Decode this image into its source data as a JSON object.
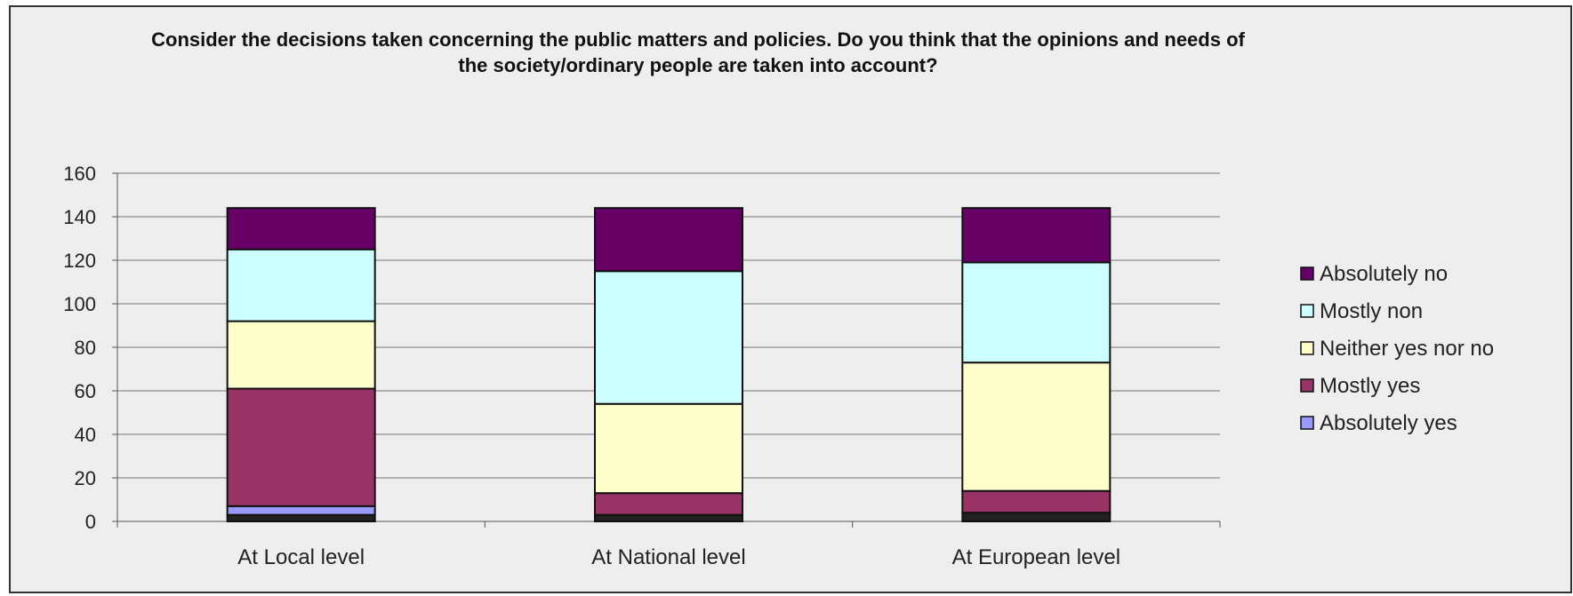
{
  "chart_data": {
    "type": "bar",
    "stacked": true,
    "title_lines": [
      "Consider the decisions taken concerning the public matters and policies. Do you think that the opinions and needs of",
      "the society/ordinary people are taken into account?"
    ],
    "categories": [
      "At Local level",
      "At National level",
      "At European level"
    ],
    "ylim": [
      0,
      160
    ],
    "yticks": [
      0,
      20,
      40,
      60,
      80,
      100,
      120,
      140,
      160
    ],
    "grid": true,
    "legend_position": "right",
    "series": [
      {
        "name": "",
        "color": "#222222",
        "values": [
          3,
          3,
          4
        ]
      },
      {
        "name": "Absolutely yes",
        "color": "#9999ff",
        "values": [
          4,
          0,
          0
        ]
      },
      {
        "name": "Mostly yes",
        "color": "#993366",
        "values": [
          54,
          10,
          10
        ]
      },
      {
        "name": "Neither yes nor no",
        "color": "#ffffcc",
        "values": [
          31,
          41,
          59
        ]
      },
      {
        "name": "Mostly non",
        "color": "#ccffff",
        "values": [
          33,
          61,
          46
        ]
      },
      {
        "name": "Absolutely no",
        "color": "#660066",
        "values": [
          19,
          29,
          25
        ]
      }
    ],
    "legend_order": [
      "Absolutely no",
      "Mostly non",
      "Neither yes nor no",
      "Mostly yes",
      "Absolutely yes"
    ]
  }
}
